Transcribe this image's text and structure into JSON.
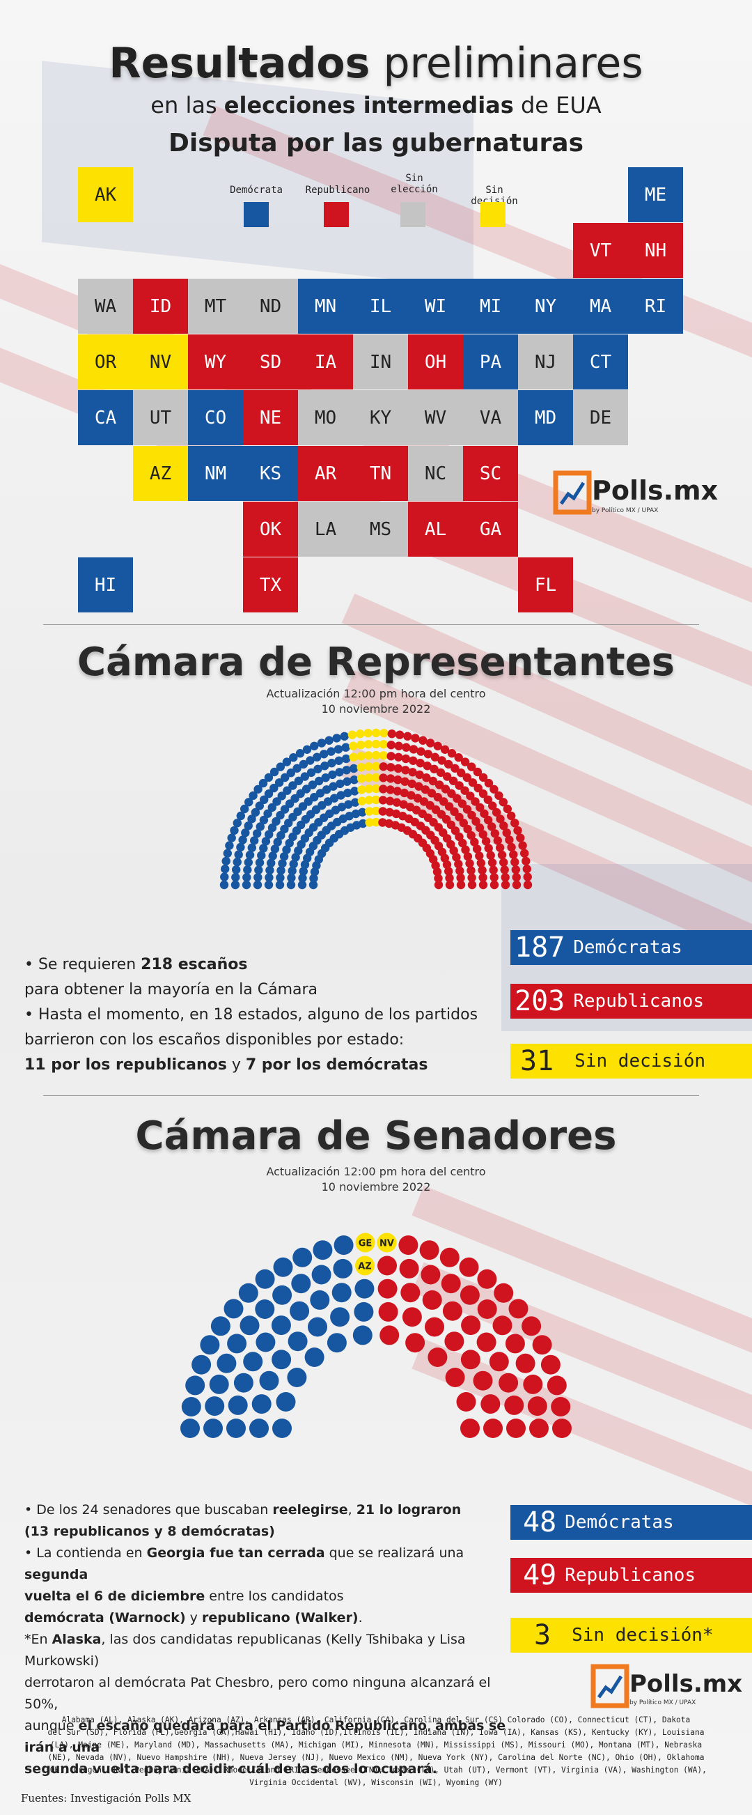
{
  "header": {
    "title_bold": "Resultados",
    "title_light": "preliminares",
    "subtitle_pre": "en las",
    "subtitle_bold": "elecciones intermedias",
    "subtitle_post": "de EUA",
    "governors_title": "Disputa por las gubernaturas"
  },
  "colors": {
    "democrat": "#1756a0",
    "republican": "#d0141f",
    "no_election": "#c4c4c4",
    "undecided": "#fde100"
  },
  "legend": [
    {
      "label": "Demócrata",
      "status": "D"
    },
    {
      "label": "Republicano",
      "status": "R"
    },
    {
      "label": "Sin elección",
      "status": "N"
    },
    {
      "label": "Sin decisión",
      "status": "U"
    }
  ],
  "states": [
    {
      "abbr": "AK",
      "status": "U"
    },
    {
      "abbr": "ME",
      "status": "D"
    },
    {
      "abbr": "VT",
      "status": "R"
    },
    {
      "abbr": "NH",
      "status": "R"
    },
    {
      "abbr": "WA",
      "status": "N"
    },
    {
      "abbr": "ID",
      "status": "R"
    },
    {
      "abbr": "MT",
      "status": "N"
    },
    {
      "abbr": "ND",
      "status": "N"
    },
    {
      "abbr": "MN",
      "status": "D"
    },
    {
      "abbr": "IL",
      "status": "D"
    },
    {
      "abbr": "WI",
      "status": "D"
    },
    {
      "abbr": "MI",
      "status": "D"
    },
    {
      "abbr": "NY",
      "status": "D"
    },
    {
      "abbr": "MA",
      "status": "D"
    },
    {
      "abbr": "RI",
      "status": "D"
    },
    {
      "abbr": "OR",
      "status": "U"
    },
    {
      "abbr": "NV",
      "status": "U"
    },
    {
      "abbr": "WY",
      "status": "R"
    },
    {
      "abbr": "SD",
      "status": "R"
    },
    {
      "abbr": "IA",
      "status": "R"
    },
    {
      "abbr": "IN",
      "status": "N"
    },
    {
      "abbr": "OH",
      "status": "R"
    },
    {
      "abbr": "PA",
      "status": "D"
    },
    {
      "abbr": "NJ",
      "status": "N"
    },
    {
      "abbr": "CT",
      "status": "D"
    },
    {
      "abbr": "CA",
      "status": "D"
    },
    {
      "abbr": "UT",
      "status": "N"
    },
    {
      "abbr": "CO",
      "status": "D"
    },
    {
      "abbr": "NE",
      "status": "R"
    },
    {
      "abbr": "MO",
      "status": "N"
    },
    {
      "abbr": "KY",
      "status": "N"
    },
    {
      "abbr": "WV",
      "status": "N"
    },
    {
      "abbr": "VA",
      "status": "N"
    },
    {
      "abbr": "MD",
      "status": "D"
    },
    {
      "abbr": "DE",
      "status": "N"
    },
    {
      "abbr": "AZ",
      "status": "U"
    },
    {
      "abbr": "NM",
      "status": "D"
    },
    {
      "abbr": "KS",
      "status": "D"
    },
    {
      "abbr": "AR",
      "status": "R"
    },
    {
      "abbr": "TN",
      "status": "R"
    },
    {
      "abbr": "NC",
      "status": "N"
    },
    {
      "abbr": "SC",
      "status": "R"
    },
    {
      "abbr": "OK",
      "status": "R"
    },
    {
      "abbr": "LA",
      "status": "N"
    },
    {
      "abbr": "MS",
      "status": "N"
    },
    {
      "abbr": "AL",
      "status": "R"
    },
    {
      "abbr": "GA",
      "status": "R"
    },
    {
      "abbr": "HI",
      "status": "D"
    },
    {
      "abbr": "TX",
      "status": "R"
    },
    {
      "abbr": "FL",
      "status": "R"
    }
  ],
  "logo": {
    "name": "Polls.mx",
    "tagline": "by Político MX / UPAX"
  },
  "house": {
    "title": "Cámara de Representantes",
    "update_line1": "Actualización 12:00 pm hora del centro",
    "update_line2": "10 noviembre 2022",
    "bars": [
      {
        "num": "187",
        "label": "Demócratas",
        "status": "D"
      },
      {
        "num": "203",
        "label": "Republicanos",
        "status": "R"
      },
      {
        "num": "31",
        "label": "Sin decisión",
        "status": "U"
      }
    ],
    "notes": {
      "l1_pre": "• Se requieren ",
      "l1_bold": "218 escaños",
      "l2": "para obtener la mayoría en la Cámara",
      "l3": "• Hasta el momento, en 18 estados, alguno de los partidos",
      "l4": "barrieron con los escaños disponibles por estado:",
      "l5_bold1": "11 por los republicanos",
      "l5_mid": " y ",
      "l5_bold2": "7 por los demócratas"
    }
  },
  "senate": {
    "title": "Cámara de Senadores",
    "update_line1": "Actualización 12:00 pm hora del centro",
    "update_line2": "10 noviembre 2022",
    "undecided_seats": [
      "AZ",
      "GE",
      "NV"
    ],
    "bars": [
      {
        "num": "48",
        "label": "Demócratas",
        "status": "D"
      },
      {
        "num": "49",
        "label": "Republicanos",
        "status": "R"
      },
      {
        "num": "3",
        "label": "Sin decisión*",
        "status": "U"
      }
    ],
    "notes": {
      "a_pre": "• De los 24 senadores que buscaban ",
      "a_bold1": "reelegirse",
      "a_mid": ", ",
      "a_bold2": "21 lo lograron",
      "b_bold": "(13 republicanos y 8 demócratas)",
      "c_pre": "• La contienda en ",
      "c_bold1": "Georgia fue tan cerrada",
      "c_mid": " que se realizará una ",
      "c_bold2": "segunda",
      "d_bold": "vuelta el 6 de diciembre",
      "d_post": " entre los candidatos",
      "e_bold1": "demócrata (Warnock)",
      "e_mid": " y ",
      "e_bold2": "republicano (Walker)",
      "e_post": ".",
      "f_pre": "*En ",
      "f_bold": "Alaska",
      "f_post": ", las dos candidatas republicanas (Kelly Tshibaka y Lisa Murkowski)",
      "g": "derrotaron al demócrata Pat Chesbro, pero como ninguna alcanzará el 50%,",
      "h_pre": "aunque ",
      "h_bold1": "el escaño quedará para el Partido Republicano",
      "h_mid": ", ",
      "h_bold2": "ambas se irán a una",
      "i_bold": "segunda vuelta para decidir cuál de las dos lo ocupará."
    }
  },
  "states_legend": [
    "Alabama   (AL), Alaska (AK), Arizona (AZ), Arkansas (AR), California (CA), Carolina del Sur (CS) Colorado      (CO), Connecticut (CT), Dakota",
    "del Sur (SD), Florida (FL),Georgia (GA),Hawái (HI), Idaho (ID),Illinois (IL), Indiana (IN), Iowa (IA), Kansas (KS), Kentucky (KY), Louisiana",
    "(LA), Maine (ME), Maryland (MD), Massachusetts (MA), Michigan (MI), Minnesota (MN), Mississippi (MS), Missouri (MO), Montana (MT), Nebraska",
    "(NE), Nevada (NV), Nuevo Hampshire (NH), Nueva Jersey (NJ), Nuevo Mexico (NM), Nueva York (NY), Carolina del Norte (NC), Ohio (OH), Oklahoma",
    "(OK), Oregon (OR), Pennsylvania (PA), Rhode Island (RI), Tennessee (TN), Texas (TX), Utah (UT), Vermont (VT), Virginia (VA), Washington (WA),",
    "Virginia Occidental (WV), Wisconsin (WI), Wyoming (WY)"
  ],
  "sources": "Fuentes: Investigación Polls MX"
}
